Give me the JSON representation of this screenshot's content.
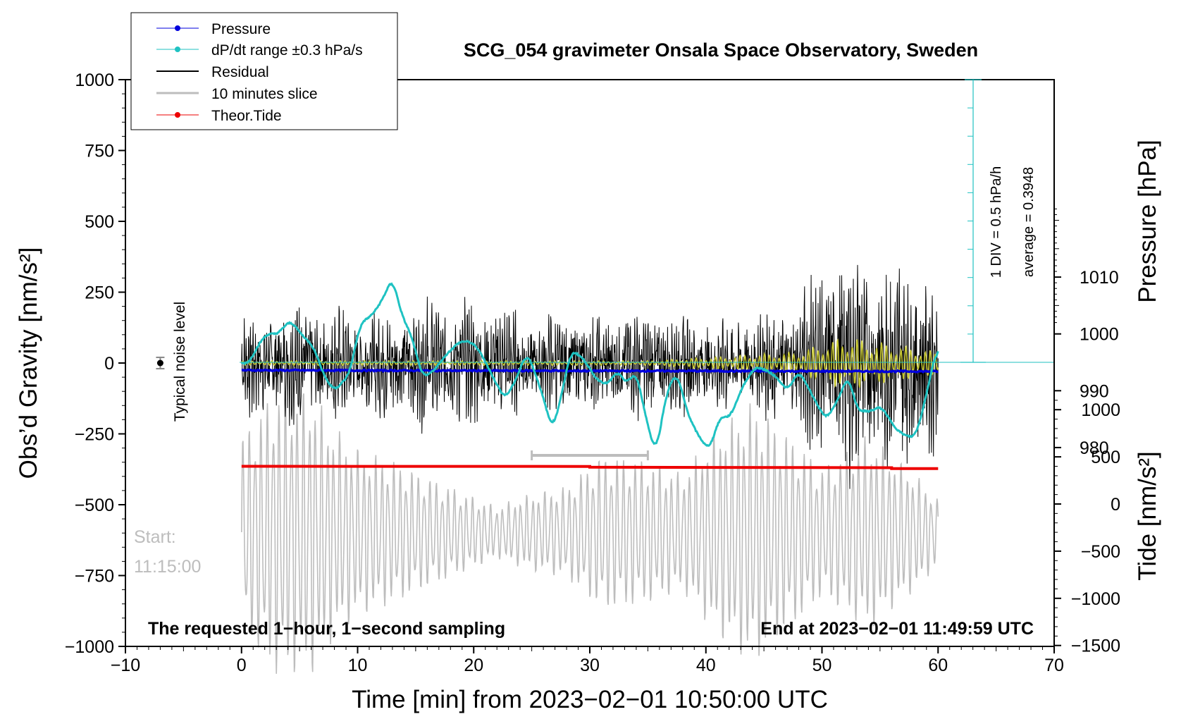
{
  "chart_data": {
    "type": "line",
    "title": "SCG_054 gravimeter Onsala Space Observatory, Sweden",
    "xlabel": "Time [min] from 2023−02−01 10:50:00 UTC",
    "ylabel_left": "Obs’d Gravity [nm/s²]",
    "ylabel_right_top": "Pressure [hPa]",
    "ylabel_right_bottom": "Tide [nm/s²]",
    "xlim": [
      -10,
      70
    ],
    "ylim": [
      -1000,
      1000
    ],
    "x_ticks": [
      "−10",
      "0",
      "10",
      "20",
      "30",
      "40",
      "50",
      "60",
      "70"
    ],
    "y_ticks": [
      "1000",
      "750",
      "500",
      "250",
      "0",
      "−250",
      "−500",
      "−750",
      "−1000"
    ],
    "pressure_ticks": [
      "1010",
      "1000",
      "990",
      "980"
    ],
    "tide_ticks": [
      "1000",
      "500",
      "0",
      "−500",
      "−1000",
      "−1500"
    ],
    "legend": [
      "Pressure",
      "dP/dt range ±0.3 hPa/s",
      "Residual",
      "10 minutes slice",
      "Theor.Tide"
    ],
    "colors": {
      "pressure": "#0000dd",
      "dpdt": "#1fc2c2",
      "residual": "#000000",
      "slice": "#bdbdbd",
      "tide": "#ee0000",
      "filtered": "#c8c832"
    },
    "annotations": {
      "noise_label": "Typical noise level",
      "start_label": "Start:",
      "start_time": "11:15:00",
      "bottom_left": "The requested 1−hour, 1−second sampling",
      "bottom_right": "End at 2023−02−01 11:49:59 UTC",
      "div_label": "1 DIV = 0.5 hPa/h",
      "average_label": "average = 0.3948"
    },
    "slice_interval_min": [
      25,
      35
    ],
    "pressure": {
      "x": [
        0,
        60
      ],
      "values": [
        993.6,
        993.4
      ]
    },
    "tide": {
      "x": [
        0,
        30,
        56,
        60
      ],
      "values": [
        400,
        390,
        375,
        375
      ]
    },
    "dpdt": {
      "x": [
        0,
        0.6,
        1.5,
        2.3,
        3.0,
        4.2,
        5.3,
        6.2,
        7.2,
        8.0,
        9.3,
        10.2,
        11.3,
        12.3,
        13.0,
        13.8,
        14.6,
        15.6,
        16.6,
        17.6,
        18.8,
        19.8,
        20.6,
        21.6,
        22.7,
        23.6,
        24.6,
        25.7,
        26.8,
        27.5,
        28.4,
        29.5,
        30.5,
        31.6,
        32.3,
        33.2,
        34.0,
        34.9,
        35.7,
        36.6,
        37.5,
        38.4,
        39.3,
        40.3,
        41.2,
        42.1,
        43.2,
        44.3,
        45.4,
        46.2,
        47.0,
        48.0,
        48.7,
        49.4,
        50.3,
        51.2,
        52.3,
        53.0,
        54.1,
        55.1,
        56.3,
        57.3,
        58.1,
        58.9,
        60.0
      ],
      "pressure_equiv": [
        995.0,
        994.7,
        998.3,
        1000.2,
        999.8,
        1002.4,
        999.6,
        997.8,
        992.2,
        990.0,
        992.8,
        1001.8,
        1003.4,
        1006.6,
        1010.1,
        1003.2,
        1000.0,
        992.2,
        993.6,
        996.3,
        998.7,
        998.6,
        996.8,
        992.6,
        988.5,
        991.8,
        996.9,
        990.8,
        982.9,
        988.8,
        997.2,
        995.6,
        992.1,
        991.0,
        993.6,
        991.2,
        993.5,
        984.6,
        978.7,
        989.7,
        993.4,
        986.1,
        982.2,
        979.5,
        985.5,
        985.3,
        991.0,
        994.3,
        993.4,
        992.2,
        989.9,
        993.5,
        991.1,
        988.3,
        984.9,
        987.7,
        992.8,
        986.6,
        986.3,
        987.3,
        983.4,
        981.9,
        982.0,
        988.5,
        998.7
      ]
    },
    "noise_marker": {
      "x": -7,
      "y": 0,
      "err": 20
    },
    "residual_envelope": {
      "x": [
        0,
        5,
        10,
        15,
        20,
        25,
        30,
        35,
        40,
        45,
        48,
        51,
        55,
        58,
        60
      ],
      "amplitude": [
        180,
        230,
        190,
        220,
        240,
        160,
        180,
        190,
        170,
        180,
        240,
        400,
        400,
        390,
        300
      ]
    },
    "slice_envelope": {
      "x": [
        0,
        3,
        6,
        8,
        10,
        13,
        18,
        22,
        25,
        28,
        31,
        35,
        38,
        41,
        44,
        46,
        50,
        54,
        58,
        60
      ],
      "amplitude": [
        150,
        220,
        220,
        160,
        130,
        110,
        70,
        40,
        60,
        70,
        120,
        110,
        90,
        160,
        200,
        170,
        100,
        150,
        90,
        50
      ]
    }
  }
}
